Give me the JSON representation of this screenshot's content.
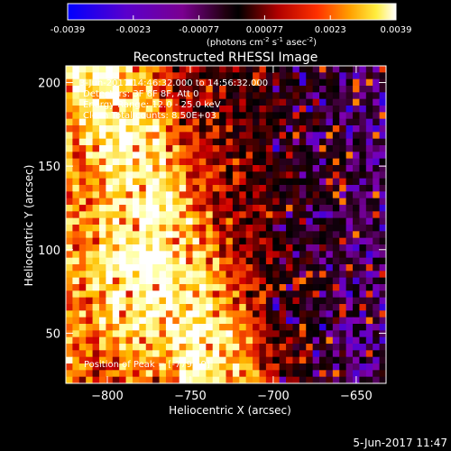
{
  "colorbar": {
    "min": -0.0039,
    "max": 0.0039,
    "ticks": [
      "-0.0039",
      "-0.0023",
      "-0.00077",
      "0.00077",
      "0.0023",
      "0.0039"
    ],
    "unit_main": "(photons cm",
    "unit_sup1": "-2",
    "unit_mid1": " s",
    "unit_sup2": "-1",
    "unit_mid2": " asec",
    "unit_sup3": "-2",
    "unit_end": ")"
  },
  "chart_data": {
    "type": "heatmap",
    "title": "Reconstructed RHESSI Image",
    "xlabel": "Heliocentric X (arcsec)",
    "ylabel": "Heliocentric Y (arcsec)",
    "xlim": [
      -825,
      -632
    ],
    "ylim": [
      20,
      210
    ],
    "xticks": [
      -800,
      -750,
      -700,
      -650
    ],
    "yticks": [
      50,
      100,
      150,
      200
    ],
    "value_range": [
      -0.0039,
      0.0039
    ],
    "peak": {
      "x": -779,
      "y": 49
    },
    "annotations": {
      "time": "3-Jun-2017 14:46:32.000 to 14:56:32.000",
      "detectors": "Detectors: 3F 6F 8F, Att 0",
      "energy": "Energy Range: 12.0 - 25.0 keV",
      "method": "Clean    Total counts: 8.50E+03",
      "peak_label": "Position of Peak = [-779,49]"
    },
    "colormap": [
      "#0000ff",
      "#5a00cc",
      "#8000b0",
      "#300020",
      "#000000",
      "#600000",
      "#d00000",
      "#ff6000",
      "#ffc000",
      "#ffffa0",
      "#ffffff"
    ]
  },
  "footer": {
    "timestamp": "5-Jun-2017 11:47"
  }
}
